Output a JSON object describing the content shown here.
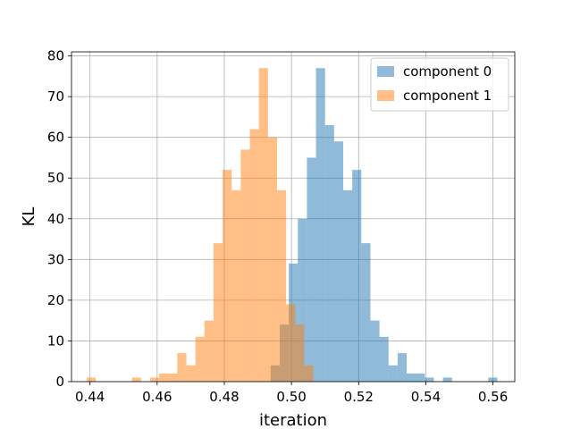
{
  "chart_data": {
    "type": "bar",
    "xlabel": "iteration",
    "ylabel": "KL",
    "xlim": [
      0.4345,
      0.5665
    ],
    "ylim": [
      0,
      81
    ],
    "xticks": [
      0.44,
      0.46,
      0.48,
      0.5,
      0.52,
      0.54,
      0.56
    ],
    "yticks": [
      0,
      10,
      20,
      30,
      40,
      50,
      60,
      70,
      80
    ],
    "grid": true,
    "legend_position": "top-right",
    "series": [
      {
        "name": "component 0",
        "color": "#1f77b4",
        "opacity": 0.5,
        "bin_edges": [
          0.4938,
          0.4965,
          0.4992,
          0.5019,
          0.5046,
          0.5073,
          0.51,
          0.5127,
          0.5154,
          0.5181,
          0.5208,
          0.5235,
          0.5262,
          0.5289,
          0.5316,
          0.5343,
          0.537,
          0.5397,
          0.5424,
          0.5451,
          0.5478,
          0.5505,
          0.5532,
          0.5559,
          0.5586,
          0.5613
        ],
        "counts": [
          4,
          14,
          29,
          40,
          55,
          77,
          63,
          59,
          47,
          52,
          34,
          15,
          11,
          4,
          7,
          2,
          2,
          1,
          0,
          1,
          0,
          0,
          0,
          0,
          1
        ]
      },
      {
        "name": "component 1",
        "color": "#ff7f0e",
        "opacity": 0.5,
        "bin_edges": [
          0.439,
          0.4417,
          0.4444,
          0.4471,
          0.4498,
          0.4525,
          0.4552,
          0.4579,
          0.4606,
          0.4633,
          0.466,
          0.4687,
          0.4714,
          0.4741,
          0.4768,
          0.4795,
          0.4822,
          0.4849,
          0.4876,
          0.4903,
          0.493,
          0.4957,
          0.4984,
          0.5011,
          0.5038,
          0.5065
        ],
        "counts": [
          1,
          0,
          0,
          0,
          0,
          1,
          0,
          1,
          2,
          2,
          7,
          4,
          11,
          15,
          34,
          52,
          47,
          57,
          62,
          77,
          60,
          47,
          19,
          14,
          4
        ]
      }
    ]
  }
}
